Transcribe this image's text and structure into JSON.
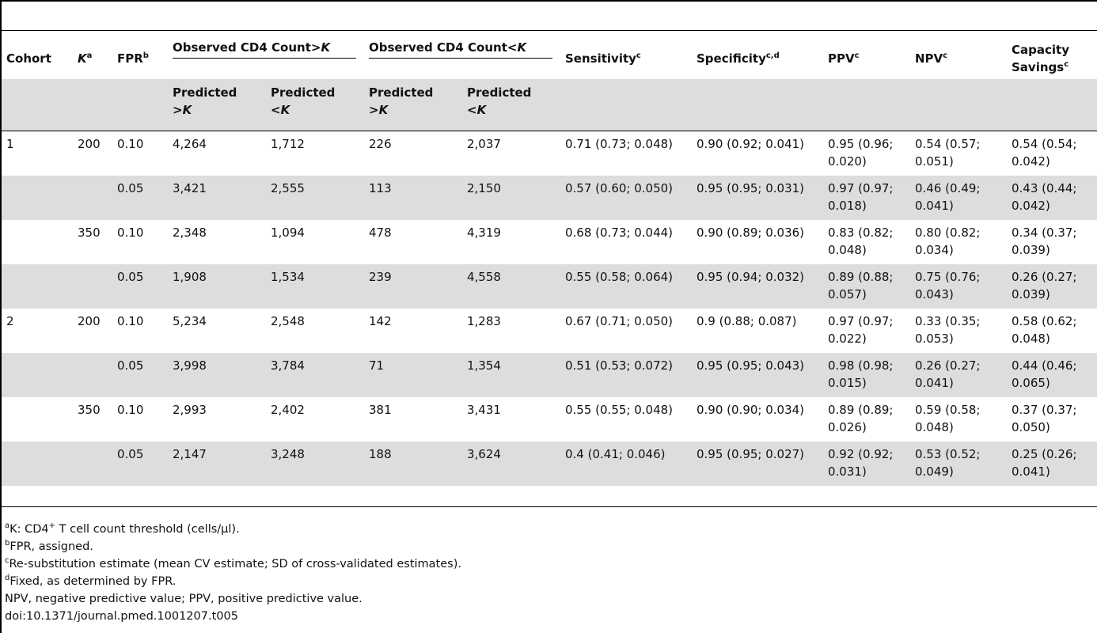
{
  "table": {
    "columns": {
      "cohort": "Cohort",
      "k": "K",
      "k_sup": "a",
      "fpr": "FPR",
      "fpr_sup": "b",
      "obs_gt": "Observed CD4 Count>",
      "obs_gt_k": "K",
      "obs_lt": "Observed CD4 Count<",
      "obs_lt_k": "K",
      "sensitivity": "Sensitivity",
      "sensitivity_sup": "c",
      "specificity": "Specificity",
      "specificity_sup": "c,d",
      "ppv": "PPV",
      "ppv_sup": "c",
      "npv": "NPV",
      "npv_sup": "c",
      "capacity_1": "Capacity",
      "capacity_2": "Savings",
      "capacity_sup": "c",
      "pred_gt_1": "Predicted",
      "pred_gt_2": ">",
      "pred_lt_1": "Predicted",
      "pred_lt_2": "<",
      "pred_k": "K"
    },
    "rows": [
      {
        "cohort": "1",
        "k": "200",
        "fpr": "0.10",
        "a": "4,264",
        "b": "1,712",
        "c": "226",
        "d": "2,037",
        "sens": "0.71 (0.73; 0.048)",
        "spec": "0.90 (0.92; 0.041)",
        "ppv_1": "0.95 (0.96;",
        "ppv_2": "0.020)",
        "npv_1": "0.54 (0.57;",
        "npv_2": "0.051)",
        "cap_1": "0.54 (0.54;",
        "cap_2": "0.042)"
      },
      {
        "cohort": "",
        "k": "",
        "fpr": "0.05",
        "a": "3,421",
        "b": "2,555",
        "c": "113",
        "d": "2,150",
        "sens": "0.57 (0.60; 0.050)",
        "spec": "0.95 (0.95; 0.031)",
        "ppv_1": "0.97 (0.97;",
        "ppv_2": "0.018)",
        "npv_1": "0.46 (0.49;",
        "npv_2": "0.041)",
        "cap_1": "0.43 (0.44;",
        "cap_2": "0.042)"
      },
      {
        "cohort": "",
        "k": "350",
        "fpr": "0.10",
        "a": "2,348",
        "b": "1,094",
        "c": "478",
        "d": "4,319",
        "sens": "0.68 (0.73; 0.044)",
        "spec": "0.90 (0.89; 0.036)",
        "ppv_1": "0.83 (0.82;",
        "ppv_2": "0.048)",
        "npv_1": "0.80 (0.82;",
        "npv_2": "0.034)",
        "cap_1": "0.34 (0.37;",
        "cap_2": "0.039)"
      },
      {
        "cohort": "",
        "k": "",
        "fpr": "0.05",
        "a": "1,908",
        "b": "1,534",
        "c": "239",
        "d": "4,558",
        "sens": "0.55 (0.58; 0.064)",
        "spec": "0.95 (0.94; 0.032)",
        "ppv_1": "0.89 (0.88;",
        "ppv_2": "0.057)",
        "npv_1": "0.75 (0.76;",
        "npv_2": "0.043)",
        "cap_1": "0.26 (0.27;",
        "cap_2": "0.039)"
      },
      {
        "cohort": "2",
        "k": "200",
        "fpr": "0.10",
        "a": "5,234",
        "b": "2,548",
        "c": "142",
        "d": "1,283",
        "sens": "0.67 (0.71; 0.050)",
        "spec": "0.9 (0.88; 0.087)",
        "ppv_1": "0.97 (0.97;",
        "ppv_2": "0.022)",
        "npv_1": "0.33 (0.35;",
        "npv_2": "0.053)",
        "cap_1": "0.58 (0.62;",
        "cap_2": "0.048)"
      },
      {
        "cohort": "",
        "k": "",
        "fpr": "0.05",
        "a": "3,998",
        "b": "3,784",
        "c": "71",
        "d": "1,354",
        "sens": "0.51 (0.53; 0.072)",
        "spec": "0.95 (0.95; 0.043)",
        "ppv_1": "0.98 (0.98;",
        "ppv_2": "0.015)",
        "npv_1": "0.26 (0.27;",
        "npv_2": "0.041)",
        "cap_1": "0.44 (0.46;",
        "cap_2": "0.065)"
      },
      {
        "cohort": "",
        "k": "350",
        "fpr": "0.10",
        "a": "2,993",
        "b": "2,402",
        "c": "381",
        "d": "3,431",
        "sens": "0.55 (0.55; 0.048)",
        "spec": "0.90 (0.90; 0.034)",
        "ppv_1": "0.89 (0.89;",
        "ppv_2": "0.026)",
        "npv_1": "0.59 (0.58;",
        "npv_2": "0.048)",
        "cap_1": "0.37 (0.37;",
        "cap_2": "0.050)"
      },
      {
        "cohort": "",
        "k": "",
        "fpr": "0.05",
        "a": "2,147",
        "b": "3,248",
        "c": "188",
        "d": "3,624",
        "sens": "0.4 (0.41; 0.046)",
        "spec": "0.95 (0.95; 0.027)",
        "ppv_1": "0.92 (0.92;",
        "ppv_2": "0.031)",
        "npv_1": "0.53 (0.52;",
        "npv_2": "0.049)",
        "cap_1": "0.25 (0.26;",
        "cap_2": "0.041)"
      }
    ]
  },
  "footnotes": {
    "a_mark": "a",
    "a_text_1": "K: CD4",
    "a_plus": "+",
    "a_text_2": " T cell count threshold (cells/µl).",
    "b_mark": "b",
    "b_text": "FPR, assigned.",
    "c_mark": "c",
    "c_text": "Re-substitution estimate (mean CV estimate; SD of cross-validated estimates).",
    "d_mark": "d",
    "d_text": "Fixed, as determined by FPR.",
    "abbrev": "NPV, negative predictive value; PPV, positive predictive value.",
    "doi": "doi:10.1371/journal.pmed.1001207.t005"
  }
}
